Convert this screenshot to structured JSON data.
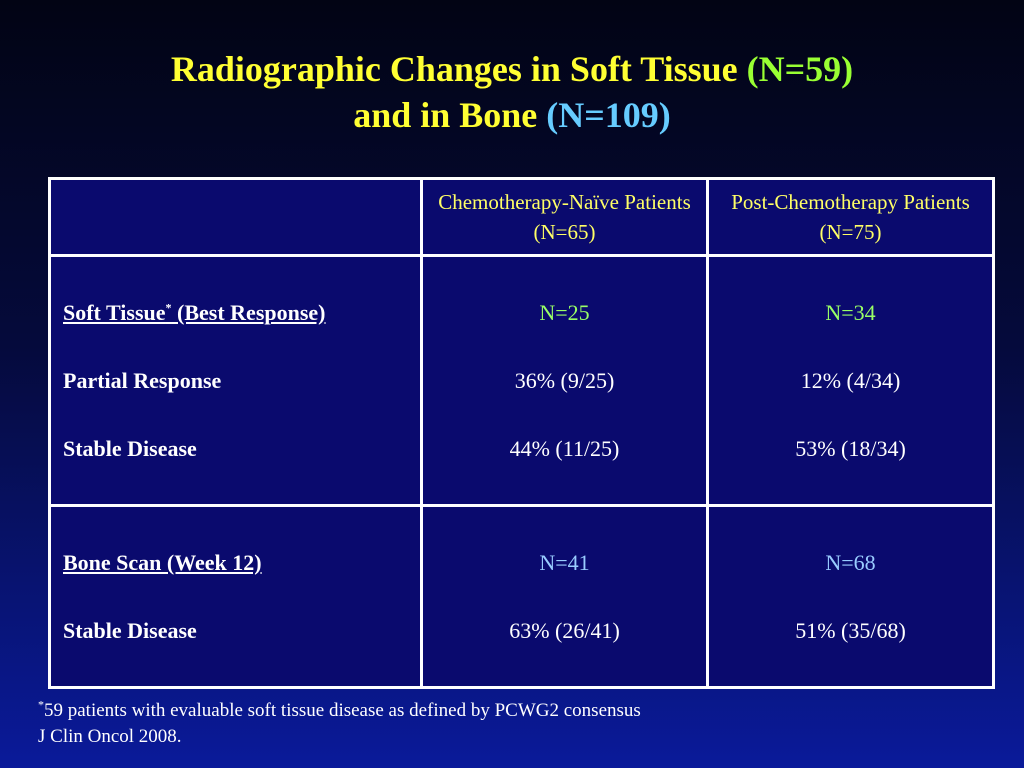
{
  "title": {
    "line1_text": "Radiographic Changes in Soft Tissue ",
    "line1_n": "(N=59)",
    "line2_text": "and in Bone ",
    "line2_n": "(N=109)"
  },
  "table": {
    "columns": [
      "",
      "Chemotherapy-Naïve Patients (N=65)",
      "Post-Chemotherapy Patients (N=75)"
    ],
    "soft_tissue": {
      "heading": "Soft Tissue",
      "heading_mark": "*",
      "heading_suffix": " (Best Response)",
      "rows": [
        {
          "label": "Partial Response",
          "naive": "36% (9/25)",
          "post": "12% (4/34)"
        },
        {
          "label": "Stable Disease",
          "naive": "44% (11/25)",
          "post": "53% (18/34)"
        }
      ],
      "naive_n": "N=25",
      "post_n": "N=34"
    },
    "bone": {
      "heading": "Bone Scan (Week 12)",
      "rows": [
        {
          "label": "Stable Disease",
          "naive": "63% (26/41)",
          "post": "51% (35/68)"
        }
      ],
      "naive_n": "N=41",
      "post_n": "N=68"
    }
  },
  "footnote": {
    "mark": "*",
    "line1": "59 patients with evaluable soft tissue disease as defined by PCWG2 consensus",
    "line2": "J Clin Oncol 2008."
  },
  "colors": {
    "title": "#ffff33",
    "title_n1": "#99ff33",
    "title_n2": "#66ccff",
    "soft_tissue_n": "#99ff66",
    "bone_n": "#99ccff"
  }
}
